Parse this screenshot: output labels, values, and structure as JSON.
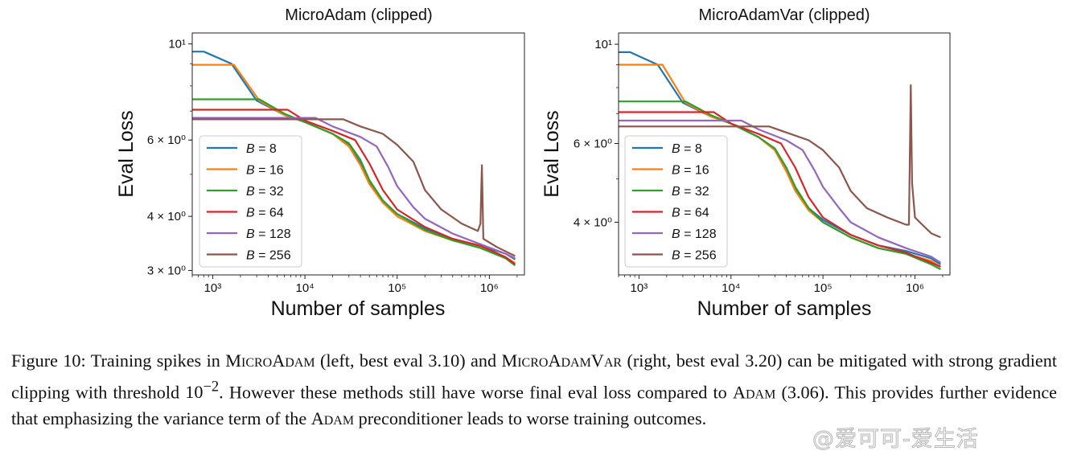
{
  "chart_data": [
    {
      "type": "line",
      "title": "MicroAdam (clipped)",
      "xlabel": "Number of samples",
      "ylabel": "Eval Loss",
      "xscale": "log",
      "yscale": "log",
      "xlim": [
        600,
        2400000
      ],
      "ylim": [
        2.93,
        10.6
      ],
      "xticks": [
        {
          "value": 1000,
          "label": "10³"
        },
        {
          "value": 10000,
          "label": "10⁴"
        },
        {
          "value": 100000,
          "label": "10⁵"
        },
        {
          "value": 1000000,
          "label": "10⁶"
        }
      ],
      "yticks": [
        {
          "value": 3,
          "label": "3 × 10⁰"
        },
        {
          "value": 4,
          "label": "4 × 10⁰"
        },
        {
          "value": 6,
          "label": "6 × 10⁰"
        },
        {
          "value": 10,
          "label": "10¹"
        }
      ],
      "legend_location": "lower-left",
      "series": [
        {
          "name": "B = 8",
          "label_var": "B",
          "label_num": "8",
          "color": "#1f77b4",
          "points": [
            [
              600,
              9.6
            ],
            [
              800,
              9.6
            ],
            [
              1600,
              9.0
            ],
            [
              3000,
              7.4
            ],
            [
              6000,
              6.85
            ],
            [
              10000,
              6.6
            ],
            [
              20000,
              6.2
            ],
            [
              30000,
              5.85
            ],
            [
              40000,
              5.3
            ],
            [
              50000,
              4.8
            ],
            [
              70000,
              4.35
            ],
            [
              100000,
              4.05
            ],
            [
              200000,
              3.75
            ],
            [
              400000,
              3.55
            ],
            [
              800000,
              3.42
            ],
            [
              1500000,
              3.28
            ],
            [
              1900000,
              3.18
            ]
          ]
        },
        {
          "name": "B = 16",
          "label_var": "B",
          "label_num": "16",
          "color": "#ff7f0e",
          "points": [
            [
              600,
              8.95
            ],
            [
              1700,
              8.95
            ],
            [
              3200,
              7.4
            ],
            [
              6000,
              6.85
            ],
            [
              10000,
              6.6
            ],
            [
              20000,
              6.2
            ],
            [
              30000,
              5.8
            ],
            [
              40000,
              5.25
            ],
            [
              50000,
              4.75
            ],
            [
              70000,
              4.3
            ],
            [
              100000,
              4.0
            ],
            [
              200000,
              3.7
            ],
            [
              400000,
              3.52
            ],
            [
              800000,
              3.4
            ],
            [
              1500000,
              3.22
            ],
            [
              1900000,
              3.12
            ]
          ]
        },
        {
          "name": "B = 32",
          "label_var": "B",
          "label_num": "32",
          "color": "#2ca02c",
          "points": [
            [
              600,
              7.45
            ],
            [
              3200,
              7.45
            ],
            [
              6000,
              6.9
            ],
            [
              10000,
              6.6
            ],
            [
              20000,
              6.2
            ],
            [
              30000,
              5.9
            ],
            [
              40000,
              5.4
            ],
            [
              50000,
              4.85
            ],
            [
              70000,
              4.35
            ],
            [
              100000,
              4.05
            ],
            [
              200000,
              3.72
            ],
            [
              400000,
              3.52
            ],
            [
              800000,
              3.38
            ],
            [
              1500000,
              3.2
            ],
            [
              1900000,
              3.08
            ]
          ]
        },
        {
          "name": "B = 64",
          "label_var": "B",
          "label_num": "64",
          "color": "#d62728",
          "points": [
            [
              600,
              7.05
            ],
            [
              6500,
              7.05
            ],
            [
              10000,
              6.65
            ],
            [
              20000,
              6.3
            ],
            [
              35000,
              6.0
            ],
            [
              50000,
              5.3
            ],
            [
              70000,
              4.6
            ],
            [
              100000,
              4.15
            ],
            [
              200000,
              3.78
            ],
            [
              400000,
              3.55
            ],
            [
              800000,
              3.42
            ],
            [
              1500000,
              3.22
            ],
            [
              1900000,
              3.1
            ]
          ]
        },
        {
          "name": "B = 128",
          "label_var": "B",
          "label_num": "128",
          "color": "#9467bd",
          "points": [
            [
              600,
              6.75
            ],
            [
              13000,
              6.75
            ],
            [
              20000,
              6.45
            ],
            [
              40000,
              6.1
            ],
            [
              60000,
              5.8
            ],
            [
              80000,
              5.2
            ],
            [
              100000,
              4.7
            ],
            [
              150000,
              4.2
            ],
            [
              200000,
              3.95
            ],
            [
              400000,
              3.65
            ],
            [
              800000,
              3.45
            ],
            [
              1500000,
              3.28
            ],
            [
              1900000,
              3.2
            ]
          ]
        },
        {
          "name": "B = 256",
          "label_var": "B",
          "label_num": "256",
          "color": "#8c564b",
          "points": [
            [
              600,
              6.7
            ],
            [
              26000,
              6.7
            ],
            [
              40000,
              6.45
            ],
            [
              70000,
              6.2
            ],
            [
              100000,
              5.85
            ],
            [
              150000,
              5.35
            ],
            [
              200000,
              4.6
            ],
            [
              300000,
              4.15
            ],
            [
              500000,
              3.85
            ],
            [
              750000,
              3.7
            ],
            [
              800000,
              3.85
            ],
            [
              830000,
              5.25
            ],
            [
              860000,
              3.55
            ],
            [
              1200000,
              3.4
            ],
            [
              1900000,
              3.24
            ]
          ]
        }
      ]
    },
    {
      "type": "line",
      "title": "MicroAdamVar (clipped)",
      "xlabel": "Number of samples",
      "ylabel": "Eval Loss",
      "xscale": "log",
      "yscale": "log",
      "xlim": [
        600,
        2400000
      ],
      "ylim": [
        3.05,
        10.6
      ],
      "xticks": [
        {
          "value": 1000,
          "label": "10³"
        },
        {
          "value": 10000,
          "label": "10⁴"
        },
        {
          "value": 100000,
          "label": "10⁵"
        },
        {
          "value": 1000000,
          "label": "10⁶"
        }
      ],
      "yticks": [
        {
          "value": 4,
          "label": "4 × 10⁰"
        },
        {
          "value": 6,
          "label": "6 × 10⁰"
        },
        {
          "value": 10,
          "label": "10¹"
        }
      ],
      "legend_location": "lower-left",
      "series": [
        {
          "name": "B = 8",
          "label_var": "B",
          "label_num": "8",
          "color": "#1f77b4",
          "points": [
            [
              600,
              9.6
            ],
            [
              800,
              9.6
            ],
            [
              1600,
              9.0
            ],
            [
              3000,
              7.4
            ],
            [
              6000,
              6.9
            ],
            [
              10000,
              6.65
            ],
            [
              20000,
              6.2
            ],
            [
              30000,
              5.8
            ],
            [
              40000,
              5.2
            ],
            [
              50000,
              4.75
            ],
            [
              70000,
              4.3
            ],
            [
              100000,
              4.05
            ],
            [
              200000,
              3.75
            ],
            [
              400000,
              3.55
            ],
            [
              800000,
              3.45
            ],
            [
              1500000,
              3.32
            ],
            [
              1900000,
              3.22
            ]
          ]
        },
        {
          "name": "B = 16",
          "label_var": "B",
          "label_num": "16",
          "color": "#ff7f0e",
          "points": [
            [
              600,
              9.0
            ],
            [
              1800,
              9.0
            ],
            [
              3200,
              7.4
            ],
            [
              6000,
              6.9
            ],
            [
              10000,
              6.65
            ],
            [
              20000,
              6.2
            ],
            [
              30000,
              5.8
            ],
            [
              40000,
              5.2
            ],
            [
              50000,
              4.7
            ],
            [
              70000,
              4.25
            ],
            [
              100000,
              4.0
            ],
            [
              200000,
              3.7
            ],
            [
              400000,
              3.5
            ],
            [
              800000,
              3.4
            ],
            [
              1500000,
              3.28
            ],
            [
              1900000,
              3.18
            ]
          ]
        },
        {
          "name": "B = 32",
          "label_var": "B",
          "label_num": "32",
          "color": "#2ca02c",
          "points": [
            [
              600,
              7.45
            ],
            [
              3200,
              7.45
            ],
            [
              6000,
              6.95
            ],
            [
              10000,
              6.65
            ],
            [
              20000,
              6.2
            ],
            [
              30000,
              5.85
            ],
            [
              40000,
              5.3
            ],
            [
              50000,
              4.8
            ],
            [
              70000,
              4.3
            ],
            [
              100000,
              4.0
            ],
            [
              200000,
              3.7
            ],
            [
              400000,
              3.5
            ],
            [
              800000,
              3.4
            ],
            [
              1500000,
              3.22
            ],
            [
              1900000,
              3.14
            ]
          ]
        },
        {
          "name": "B = 64",
          "label_var": "B",
          "label_num": "64",
          "color": "#d62728",
          "points": [
            [
              600,
              7.05
            ],
            [
              6500,
              7.05
            ],
            [
              10000,
              6.65
            ],
            [
              20000,
              6.3
            ],
            [
              35000,
              6.0
            ],
            [
              50000,
              5.3
            ],
            [
              70000,
              4.55
            ],
            [
              100000,
              4.1
            ],
            [
              200000,
              3.75
            ],
            [
              400000,
              3.55
            ],
            [
              800000,
              3.42
            ],
            [
              1500000,
              3.25
            ],
            [
              1900000,
              3.18
            ]
          ]
        },
        {
          "name": "B = 128",
          "label_var": "B",
          "label_num": "128",
          "color": "#9467bd",
          "points": [
            [
              600,
              6.75
            ],
            [
              13000,
              6.75
            ],
            [
              20000,
              6.45
            ],
            [
              40000,
              6.1
            ],
            [
              60000,
              5.8
            ],
            [
              80000,
              5.25
            ],
            [
              100000,
              4.8
            ],
            [
              150000,
              4.3
            ],
            [
              200000,
              4.0
            ],
            [
              400000,
              3.7
            ],
            [
              800000,
              3.5
            ],
            [
              1500000,
              3.35
            ],
            [
              1900000,
              3.25
            ]
          ]
        },
        {
          "name": "B = 256",
          "label_var": "B",
          "label_num": "256",
          "color": "#8c564b",
          "points": [
            [
              600,
              6.55
            ],
            [
              26000,
              6.55
            ],
            [
              40000,
              6.35
            ],
            [
              70000,
              6.1
            ],
            [
              100000,
              5.8
            ],
            [
              150000,
              5.3
            ],
            [
              200000,
              4.7
            ],
            [
              300000,
              4.3
            ],
            [
              500000,
              4.1
            ],
            [
              800000,
              3.95
            ],
            [
              860000,
              3.95
            ],
            [
              900000,
              8.1
            ],
            [
              930000,
              4.9
            ],
            [
              1000000,
              4.1
            ],
            [
              1200000,
              3.95
            ],
            [
              1500000,
              3.78
            ],
            [
              1900000,
              3.7
            ]
          ]
        }
      ]
    }
  ],
  "caption": {
    "figure_label": "Figure 10:",
    "text_1": "Training spikes in",
    "method_1": "MicroAdam",
    "text_2": "(left, best eval 3.10) and",
    "method_2": "MicroAdamVar",
    "text_3": "(right, best eval 3.20) can be mitigated with strong gradient clipping with threshold",
    "threshold_base": "10",
    "threshold_exp": "−2",
    "text_4": ". However these methods still have worse final eval loss compared to",
    "method_3": "Adam",
    "text_5": "(3.06). This provides further evidence that emphasizing the variance term of the",
    "method_4": "Adam",
    "text_6": "preconditioner leads to worse training outcomes."
  },
  "watermark": "@爱可可-爱生活"
}
